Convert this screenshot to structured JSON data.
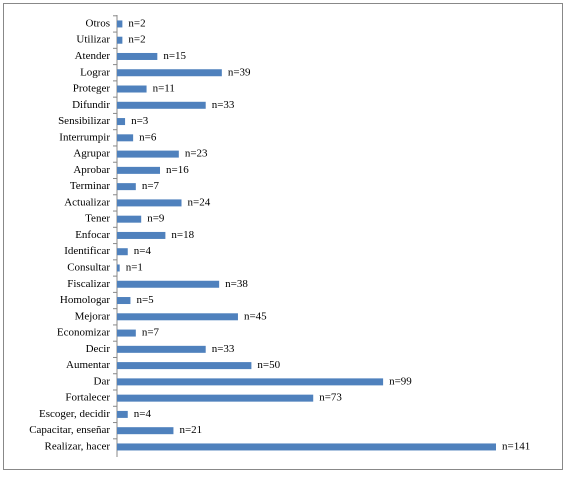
{
  "chart_data": {
    "type": "bar",
    "orientation": "horizontal",
    "color": "#4f81bd",
    "categories": [
      "Otros",
      "Utilizar",
      "Atender",
      "Lograr",
      "Proteger",
      "Difundir",
      "Sensibilizar",
      "Interrumpir",
      "Agrupar",
      "Aprobar",
      "Terminar",
      "Actualizar",
      "Tener",
      "Enfocar",
      "Identificar",
      "Consultar",
      "Fiscalizar",
      "Homologar",
      "Mejorar",
      "Economizar",
      "Decir",
      "Aumentar",
      "Dar",
      "Fortalecer",
      "Escoger, decidir",
      "Capacitar, enseñar",
      "Realizar, hacer"
    ],
    "values": [
      2,
      2,
      15,
      39,
      11,
      33,
      3,
      6,
      23,
      16,
      7,
      24,
      9,
      18,
      4,
      1,
      38,
      5,
      45,
      7,
      33,
      50,
      99,
      73,
      4,
      21,
      141
    ],
    "value_labels": [
      "n=2",
      "n=2",
      "n=15",
      "n=39",
      "n=11",
      "n=33",
      "n=3",
      "n=6",
      "n=23",
      "n=16",
      "n=7",
      "n=24",
      "n=9",
      "n=18",
      "n=4",
      "n=1",
      "n=38",
      "n=5",
      "n=45",
      "n=7",
      "n=33",
      "n=50",
      "n=99",
      "n=73",
      "n=4",
      "n=21",
      "n=141"
    ]
  }
}
